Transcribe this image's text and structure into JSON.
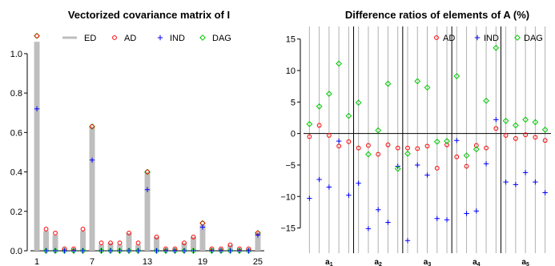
{
  "chart_data": [
    {
      "type": "bar",
      "title": "Vectorized covariance matrix of I",
      "ylim": [
        0,
        1.15
      ],
      "yticks": [
        "0.0",
        "0.2",
        "0.4",
        "0.6",
        "0.8",
        "1.0"
      ],
      "ytick_values": [
        0,
        0.2,
        0.4,
        0.6,
        0.8,
        1.0
      ],
      "xticks": [
        "1",
        "7",
        "13",
        "19",
        "25"
      ],
      "xtick_values": [
        1,
        7,
        13,
        19,
        25
      ],
      "x": [
        1,
        2,
        3,
        4,
        5,
        6,
        7,
        8,
        9,
        10,
        11,
        12,
        13,
        14,
        15,
        16,
        17,
        18,
        19,
        20,
        21,
        22,
        23,
        24,
        25
      ],
      "legend_position": "top-right",
      "grid": false,
      "series": [
        {
          "name": "ED",
          "mark": "bar",
          "color": "#bebebe",
          "values": [
            1.06,
            0.1,
            0.08,
            0.01,
            0.01,
            0.1,
            0.63,
            0.03,
            0.04,
            0.03,
            0.09,
            0.03,
            0.4,
            0.07,
            0.01,
            0.01,
            0.04,
            0.07,
            0.13,
            0.01,
            0.01,
            0.03,
            0.01,
            0.01,
            0.09
          ]
        },
        {
          "name": "AD",
          "mark": "circle",
          "color": "#ff0000",
          "values": [
            1.09,
            0.11,
            0.09,
            0.01,
            0.01,
            0.11,
            0.63,
            0.04,
            0.04,
            0.04,
            0.09,
            0.04,
            0.4,
            0.07,
            0.01,
            0.01,
            0.04,
            0.07,
            0.14,
            0.01,
            0.01,
            0.03,
            0.01,
            0.01,
            0.09
          ]
        },
        {
          "name": "IND",
          "mark": "plus",
          "color": "#0000ff",
          "values": [
            0.72,
            0,
            0,
            0,
            0,
            0,
            0.46,
            0,
            0,
            0,
            0,
            0,
            0.31,
            0,
            0,
            0,
            0,
            0,
            0.12,
            0,
            0,
            0,
            0,
            0,
            0.08
          ]
        },
        {
          "name": "DAG",
          "mark": "diamond",
          "color": "#00cd00",
          "values": [
            1.09,
            0,
            0,
            0,
            0,
            0,
            0.63,
            0,
            0,
            0,
            0,
            0,
            0.4,
            0,
            0,
            0,
            0,
            0,
            0.14,
            0,
            0,
            0,
            0,
            0,
            0.09
          ]
        }
      ]
    },
    {
      "type": "scatter",
      "title": "Difference ratios of elements of A (%)",
      "ylim": [
        -19,
        17
      ],
      "yticks": [
        "−15",
        "−10",
        "−5",
        "0",
        "5",
        "10",
        "15"
      ],
      "ytick_values": [
        -15,
        -10,
        -5,
        0,
        5,
        10,
        15
      ],
      "group_labels": [
        {
          "base": "a",
          "sub": "1"
        },
        {
          "base": "a",
          "sub": "2"
        },
        {
          "base": "a",
          "sub": "3"
        },
        {
          "base": "a",
          "sub": "4"
        },
        {
          "base": "a",
          "sub": "5"
        }
      ],
      "points_per_group": 5,
      "legend_position": "top-right",
      "series": [
        {
          "name": "AD",
          "mark": "circle",
          "color": "#ff0000",
          "values": [
            -0.5,
            1.3,
            -0.3,
            -2.0,
            -1.3,
            -2.3,
            -1.9,
            -3.3,
            -1.8,
            -2.3,
            -2.3,
            -2.4,
            -2.0,
            -5.5,
            -1.8,
            -3.7,
            -5.2,
            -1.9,
            -2.3,
            0.8,
            -0.3,
            -0.8,
            -0.2,
            -0.6,
            -1.1
          ]
        },
        {
          "name": "IND",
          "mark": "plus",
          "color": "#0000ff",
          "values": [
            -10.3,
            -7.3,
            -8.5,
            -1.2,
            -9.8,
            -7.9,
            -15.1,
            -12.1,
            -14.1,
            -5.2,
            -17.0,
            -5.0,
            -6.6,
            -13.5,
            -13.7,
            -1.1,
            -12.7,
            -12.3,
            -4.8,
            2.2,
            -7.7,
            -8.1,
            -6.2,
            -7.7,
            -9.4
          ]
        },
        {
          "name": "DAG",
          "mark": "diamond",
          "color": "#00cd00",
          "values": [
            1.5,
            4.3,
            6.3,
            11.1,
            2.8,
            4.9,
            -3.3,
            0.5,
            7.9,
            -5.6,
            -3.2,
            8.3,
            7.3,
            -1.3,
            -1.2,
            9.1,
            -3.5,
            -2.5,
            5.2,
            13.6,
            2.0,
            1.3,
            2.2,
            1.8,
            0.6
          ]
        }
      ]
    }
  ]
}
